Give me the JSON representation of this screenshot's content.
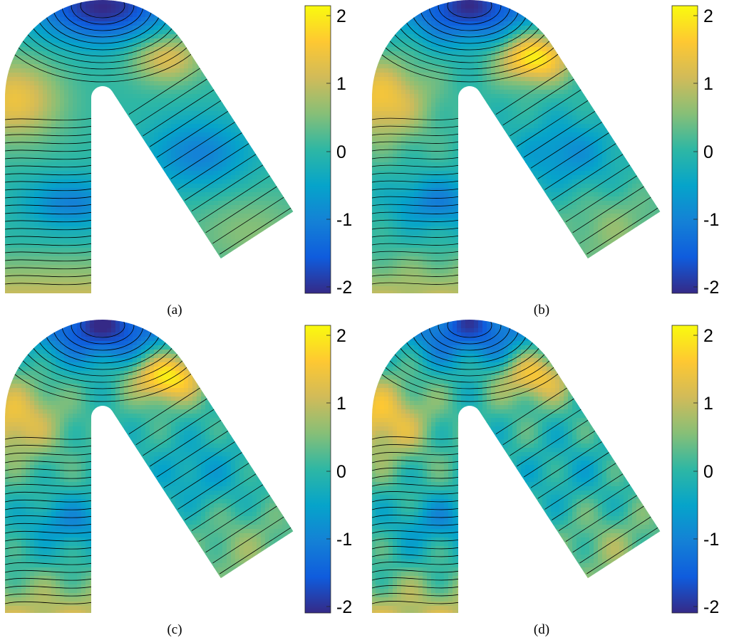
{
  "colors": {
    "colormap": [
      "#352a87",
      "#0f5cdd",
      "#1481d6",
      "#06a4ca",
      "#2eb7a4",
      "#87bf77",
      "#d1bb59",
      "#fec832",
      "#f9fb0e"
    ],
    "contour_line": "#000000"
  },
  "chart_data": [
    {
      "type": "heatmap",
      "caption": "(a)",
      "colorbar": {
        "ticks": [
          "2",
          "1",
          "0",
          "-1",
          "-2"
        ],
        "range": [
          -2,
          2
        ]
      },
      "field": {
        "left_leg_band": -1.0,
        "right_leg_band": -1.0,
        "left_peak": 1.3,
        "right_peak": 1.2,
        "top_min": -2.0,
        "bottom_edge": 0.9,
        "complexity": 0
      }
    },
    {
      "type": "heatmap",
      "caption": "(b)",
      "colorbar": {
        "ticks": [
          "2",
          "1",
          "0",
          "-1",
          "-2"
        ],
        "range": [
          -2,
          2
        ]
      },
      "field": {
        "left_leg_band": -1.0,
        "right_leg_band": -0.8,
        "left_peak": 1.4,
        "right_peak": 2.0,
        "top_min": -1.9,
        "bottom_edge": 0.8,
        "complexity": 1
      }
    },
    {
      "type": "heatmap",
      "caption": "(c)",
      "colorbar": {
        "ticks": [
          "2",
          "1",
          "0",
          "-1",
          "-2"
        ],
        "range": [
          -2,
          2
        ]
      },
      "field": {
        "left_leg_band": -0.8,
        "right_leg_band": -0.5,
        "left_peak": 1.3,
        "right_peak": 2.0,
        "top_min": -1.9,
        "bottom_edge": 0.9,
        "complexity": 2
      }
    },
    {
      "type": "heatmap",
      "caption": "(d)",
      "colorbar": {
        "ticks": [
          "2",
          "1",
          "0",
          "-1",
          "-2"
        ],
        "range": [
          -2,
          2
        ]
      },
      "field": {
        "left_leg_band": -0.7,
        "right_leg_band": -0.3,
        "left_peak": 1.4,
        "right_peak": 1.5,
        "top_min": -1.6,
        "bottom_edge": 0.9,
        "complexity": 3
      }
    }
  ]
}
